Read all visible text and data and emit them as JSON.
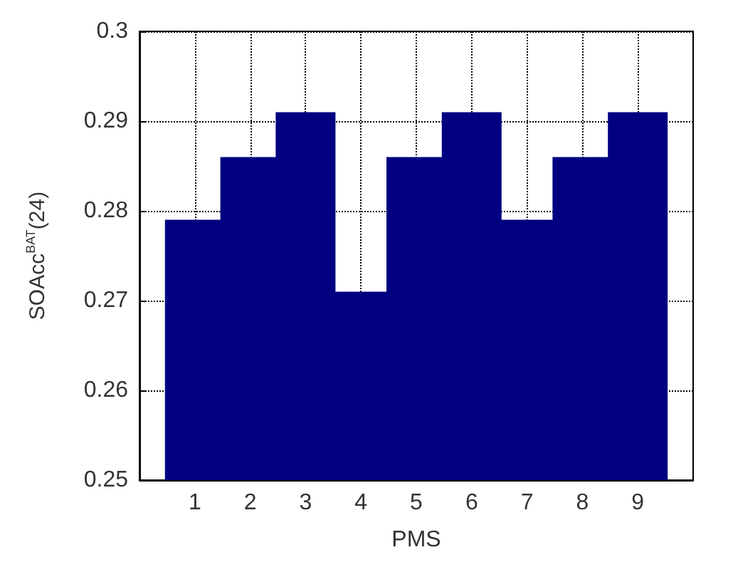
{
  "chart_data": {
    "type": "bar",
    "xlabel": "PMS",
    "ylabel": "SOAcc$^{BAT}$(24)",
    "x": [
      1,
      2,
      3,
      4,
      5,
      6,
      7,
      8,
      9
    ],
    "values": [
      0.279,
      0.286,
      0.291,
      0.271,
      0.286,
      0.291,
      0.279,
      0.286,
      0.291
    ],
    "color": "#000080",
    "xlim": [
      0,
      10
    ],
    "xticks": [
      1,
      2,
      3,
      4,
      5,
      6,
      7,
      8,
      9
    ],
    "ylim": [
      0.25,
      0.3
    ],
    "yticks": [
      0.25,
      0.26,
      0.27,
      0.28,
      0.29,
      {
        "value": 0.3,
        "label": "0.3"
      }
    ],
    "grid": true
  }
}
